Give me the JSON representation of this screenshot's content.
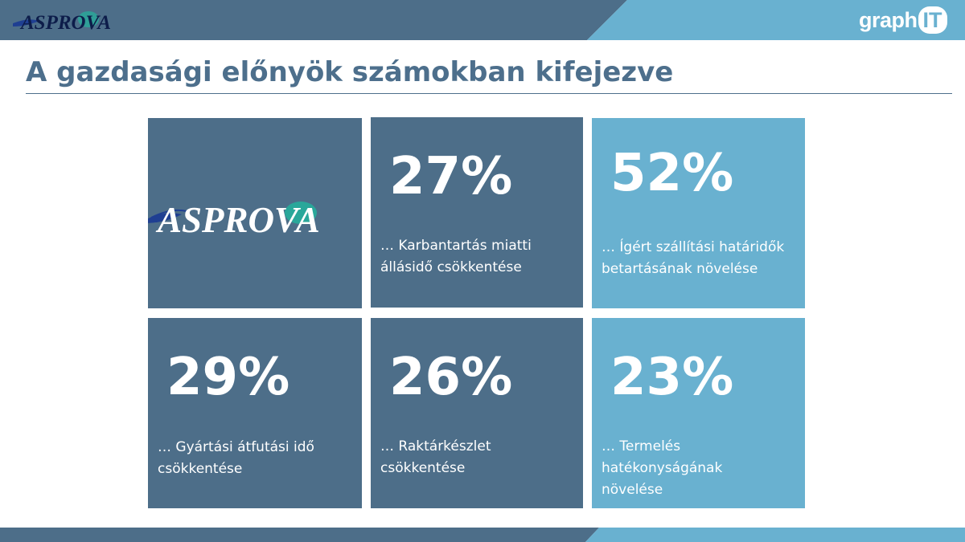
{
  "header": {
    "logo_text": "ASPROVA",
    "brand_text": "graph",
    "brand_box_text": "IT",
    "colors": {
      "dark": "#4d6e89",
      "light": "#69b1d0"
    }
  },
  "page_title": "A gazdasági előnyök számokban kifejezve",
  "feature_logo_text": "ASPROVA",
  "stats": [
    {
      "percent": "27%",
      "label": "… Karbantartás miatti\nállásidő csökkentése"
    },
    {
      "percent": "52%",
      "label": "… Ígért szállítási határidők\nbetartásának növelése"
    },
    {
      "percent": "29%",
      "label": "… Gyártási átfutási idő\ncsökkentése"
    },
    {
      "percent": "26%",
      "label": "… Raktárkészlet\ncsökkentése"
    },
    {
      "percent": "23%",
      "label": "… Termelés\nhatékonyságának\nnövelése"
    }
  ]
}
